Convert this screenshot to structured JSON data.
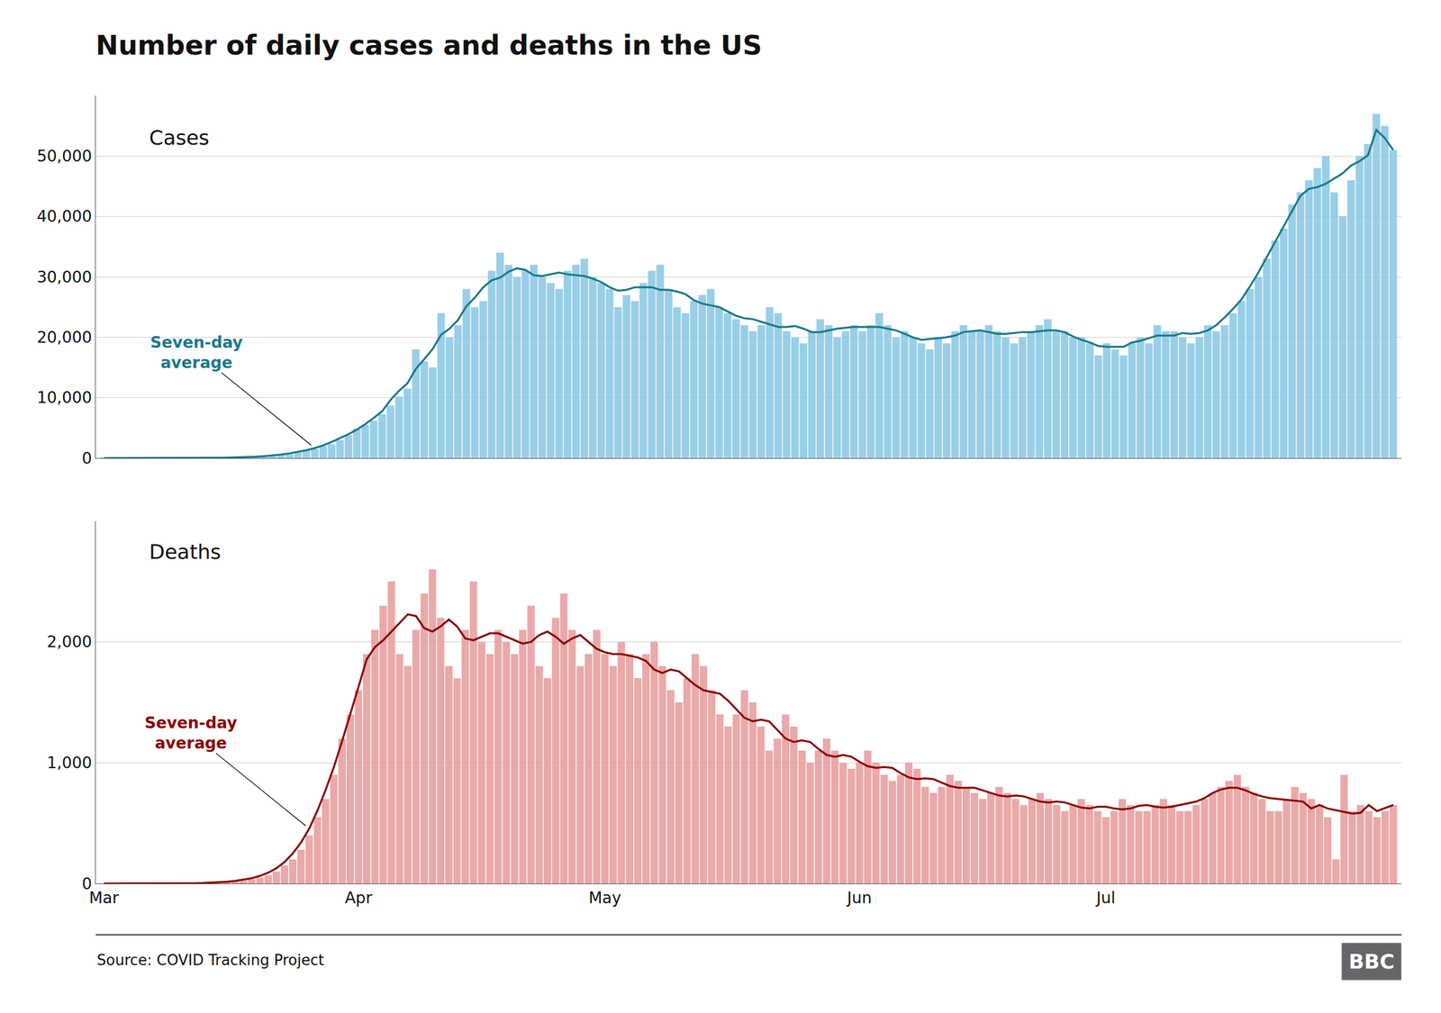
{
  "title": "Number of daily cases and deaths in the US",
  "source": "Source: COVID Tracking Project",
  "logo": "BBC",
  "chart_data": [
    {
      "type": "bar",
      "title": "Cases",
      "annotations": [
        {
          "text": "Seven-day\naverage"
        }
      ],
      "categories": [
        "Mar",
        null,
        null,
        null,
        null,
        null,
        null,
        null,
        null,
        null,
        null,
        null,
        null,
        null,
        null,
        null,
        null,
        null,
        null,
        null,
        null,
        null,
        null,
        null,
        null,
        null,
        null,
        null,
        null,
        null,
        null,
        "Apr",
        null,
        null,
        null,
        null,
        null,
        null,
        null,
        null,
        null,
        null,
        null,
        null,
        null,
        null,
        null,
        null,
        null,
        null,
        null,
        null,
        null,
        null,
        null,
        null,
        null,
        null,
        null,
        null,
        null,
        "May",
        null,
        null,
        null,
        null,
        null,
        null,
        null,
        null,
        null,
        null,
        null,
        null,
        null,
        null,
        null,
        null,
        null,
        null,
        null,
        null,
        null,
        null,
        null,
        null,
        null,
        null,
        null,
        null,
        null,
        null,
        "Jun",
        null,
        null,
        null,
        null,
        null,
        null,
        null,
        null,
        null,
        null,
        null,
        null,
        null,
        null,
        null,
        null,
        null,
        null,
        null,
        null,
        null,
        null,
        null,
        null,
        null,
        null,
        null,
        null,
        null,
        "Jul",
        null,
        null,
        null,
        null,
        null,
        null,
        null,
        null,
        null,
        null,
        null,
        null,
        null,
        null,
        null,
        null,
        null,
        null,
        null,
        null,
        null,
        null,
        null,
        null,
        null,
        null,
        null,
        null,
        null,
        null,
        null
      ],
      "series": [
        {
          "type": "bar",
          "color": "#8ecae6",
          "values": [
            1,
            0,
            2,
            0,
            3,
            5,
            8,
            10,
            15,
            12,
            18,
            22,
            30,
            42,
            55,
            70,
            100,
            140,
            200,
            280,
            380,
            500,
            700,
            900,
            1200,
            1500,
            2000,
            2300,
            3000,
            3800,
            4900,
            5500,
            6200,
            7300,
            8700,
            10200,
            11500,
            18000,
            16000,
            15000,
            24000,
            20000,
            22000,
            28000,
            25000,
            26000,
            31000,
            34000,
            32000,
            30000,
            31000,
            32000,
            30000,
            29000,
            28000,
            31000,
            32000,
            33000,
            30000,
            29000,
            28000,
            25000,
            27000,
            26000,
            29000,
            31000,
            32000,
            28000,
            25000,
            24000,
            26000,
            27000,
            28000,
            25000,
            24000,
            23000,
            22000,
            21000,
            22000,
            25000,
            24000,
            21000,
            20000,
            19000,
            21000,
            23000,
            22000,
            20000,
            21000,
            22000,
            21000,
            22000,
            24000,
            22000,
            20000,
            21000,
            20000,
            19000,
            18000,
            20000,
            19000,
            21000,
            22000,
            21000,
            21000,
            22000,
            21000,
            20000,
            19000,
            20000,
            21000,
            22000,
            23000,
            21000,
            21000,
            20000,
            20000,
            19000,
            17000,
            19000,
            18000,
            17000,
            19000,
            20000,
            19000,
            22000,
            21000,
            21000,
            20000,
            19000,
            20000,
            22000,
            21000,
            22000,
            24000,
            26000,
            28000,
            30000,
            33000,
            36000,
            38000,
            42000,
            44000,
            46000,
            48000,
            50000,
            44000,
            40000,
            46000,
            50000,
            52000,
            57000,
            55000,
            51000
          ]
        },
        {
          "type": "line",
          "color": "#1a7a8a",
          "values": [
            1,
            0.5,
            1,
            2.71,
            4,
            6.14,
            7.57,
            10.14,
            12.86,
            16.43,
            21.29,
            27.71,
            35.57,
            48.14,
            65.57,
            91,
            126.71,
            175,
            238.57,
            328.57,
            442.86,
            594.29,
            780,
            1025.71,
            1300,
            1657.14,
            2100,
            2671.43,
            3285.71,
            3957.14,
            4714.29,
            5628.57,
            6657.14,
            7757.14,
            9628.57,
            11128.57,
            12385.71,
            14771.43,
            16385.71,
            18071.43,
            20428.57,
            21428.57,
            22857.14,
            25142.86,
            26571.43,
            28285.71,
            29428.57,
            29857.14,
            30857.14,
            31428.57,
            31142.86,
            30285.71,
            30142.86,
            30428.57,
            30714.29,
            30428.57,
            30285.71,
            30142.86,
            29714.29,
            29142.86,
            28285.71,
            27714.29,
            27857.14,
            28285.71,
            28285.71,
            28285.71,
            27857.14,
            27857.14,
            27571.43,
            27142.86,
            26142.86,
            25571.43,
            25285.71,
            25000,
            24285.71,
            23571.43,
            23142.86,
            23000,
            22571.43,
            22142.86,
            21714.29,
            21714.29,
            21857.14,
            21428.57,
            20857.14,
            20857.14,
            21142.86,
            21428.57,
            21571.43,
            21714.29,
            21714.29,
            21714.29,
            21714.29,
            21428.57,
            21142.86,
            20571.43,
            20000,
            19571.43,
            19714.29,
            19857.14,
            20000,
            20285.71,
            20857.14,
            21000,
            21142.86,
            20857.14,
            20571.43,
            20571.43,
            20714.29,
            20857.14,
            20857.14,
            21000,
            21142.86,
            21142.86,
            20857.14,
            20142.86,
            19571.43,
            19142.86,
            18571.43,
            18428.57,
            18428.57,
            18428.57,
            19142.86,
            19428.57,
            19857.14,
            20285.71,
            20285.71,
            20285.71,
            20714.29,
            20571.43,
            20714.29,
            21142.86,
            22000,
            23285.71,
            24714.29,
            26285.71,
            28428.57,
            30714.29,
            33285.71,
            35857.14,
            38428.57,
            41000,
            43428.57,
            44571.43,
            44857.14,
            45428.57,
            46285.71,
            47142.86,
            48428.57,
            49142.86,
            50142.86,
            54333.33,
            53000,
            51000
          ]
        }
      ],
      "ylim": [
        0,
        60000
      ],
      "yticks": [
        0,
        {
          "value": 10000,
          "label": "10,000"
        },
        {
          "value": 20000,
          "label": "20,000"
        },
        {
          "value": 30000,
          "label": "30,000"
        },
        {
          "value": 40000,
          "label": "40,000"
        },
        {
          "value": 50000,
          "label": "50,000"
        }
      ],
      "grid": true,
      "tick_labels": "y"
    },
    {
      "type": "bar",
      "title": "Deaths",
      "annotations": [
        {
          "text": "Seven-day\naverage"
        }
      ],
      "categories": [
        "Mar",
        null,
        null,
        null,
        null,
        null,
        null,
        null,
        null,
        null,
        null,
        null,
        null,
        null,
        null,
        null,
        null,
        null,
        null,
        null,
        null,
        null,
        null,
        null,
        null,
        null,
        null,
        null,
        null,
        null,
        null,
        "Apr",
        null,
        null,
        null,
        null,
        null,
        null,
        null,
        null,
        null,
        null,
        null,
        null,
        null,
        null,
        null,
        null,
        null,
        null,
        null,
        null,
        null,
        null,
        null,
        null,
        null,
        null,
        null,
        null,
        null,
        "May",
        null,
        null,
        null,
        null,
        null,
        null,
        null,
        null,
        null,
        null,
        null,
        null,
        null,
        null,
        null,
        null,
        null,
        null,
        null,
        null,
        null,
        null,
        null,
        null,
        null,
        null,
        null,
        null,
        null,
        null,
        "Jun",
        null,
        null,
        null,
        null,
        null,
        null,
        null,
        null,
        null,
        null,
        null,
        null,
        null,
        null,
        null,
        null,
        null,
        null,
        null,
        null,
        null,
        null,
        null,
        null,
        null,
        null,
        null,
        null,
        null,
        "Jul",
        null,
        null,
        null,
        null,
        null,
        null,
        null,
        null,
        null,
        null,
        null,
        null,
        null,
        null,
        null,
        null,
        null,
        null,
        null,
        null,
        null,
        null,
        null,
        null,
        null,
        null,
        null,
        null,
        null,
        null,
        null,
        null,
        null,
        null,
        null
      ],
      "series": [
        {
          "type": "bar",
          "color": "#e8a0a0",
          "values": [
            0,
            0,
            0,
            0,
            0,
            0,
            0,
            0,
            0,
            0,
            1,
            2,
            3,
            5,
            8,
            12,
            18,
            25,
            35,
            50,
            70,
            100,
            150,
            200,
            280,
            400,
            550,
            700,
            900,
            1200,
            1400,
            1600,
            1900,
            2100,
            2300,
            2500,
            1900,
            1800,
            2100,
            2400,
            2600,
            2200,
            1800,
            1700,
            2100,
            2500,
            2000,
            1900,
            2100,
            2000,
            1900,
            2100,
            2300,
            1800,
            1700,
            2200,
            2400,
            2100,
            1800,
            1900,
            2100,
            1900,
            1800,
            2000,
            1900,
            1700,
            1900,
            2000,
            1800,
            1600,
            1500,
            1700,
            1900,
            1800,
            1600,
            1400,
            1300,
            1400,
            1600,
            1500,
            1300,
            1100,
            1200,
            1400,
            1300,
            1100,
            1000,
            1100,
            1200,
            1100,
            1000,
            950,
            1000,
            1100,
            1000,
            900,
            850,
            900,
            1000,
            950,
            800,
            750,
            800,
            900,
            850,
            800,
            750,
            700,
            750,
            800,
            750,
            700,
            650,
            700,
            750,
            700,
            650,
            600,
            650,
            700,
            650,
            600,
            550,
            600,
            700,
            650,
            600,
            600,
            650,
            700,
            650,
            600,
            600,
            650,
            700,
            750,
            800,
            850,
            900,
            800,
            750,
            700,
            600,
            600,
            700,
            800,
            750,
            700,
            650,
            550,
            200,
            900,
            600,
            650,
            600,
            550,
            600,
            650
          ]
        },
        {
          "type": "line",
          "color": "#8b0000",
          "values": [
            0,
            0,
            0,
            0,
            0,
            0,
            0,
            0.14,
            0.43,
            0.86,
            1.57,
            2.71,
            4.43,
            7,
            10.43,
            15.14,
            21.86,
            31.14,
            44.29,
            64,
            90,
            126.43,
            178.57,
            250,
            340,
            454.29,
            604.29,
            775.71,
            964.29,
            1178.57,
            1400,
            1628.57,
            1857.14,
            1957.14,
            2014.29,
            2085.71,
            2157.14,
            2228.57,
            2214.29,
            2114.29,
            2085.71,
            2128.57,
            2185.71,
            2128.57,
            2028.57,
            2014.29,
            2042.86,
            2071.43,
            2071.43,
            2042.86,
            2014.29,
            1985.71,
            2000,
            2057.14,
            2085.71,
            2042.86,
            1985.71,
            2028.57,
            2057.14,
            2000,
            1942.86,
            1914.29,
            1900,
            1900,
            1885.71,
            1871.43,
            1842.86,
            1771.43,
            1742.86,
            1771.43,
            1757.14,
            1700,
            1642.86,
            1600,
            1585.71,
            1571.43,
            1514.29,
            1442.86,
            1371.43,
            1342.86,
            1357.14,
            1342.86,
            1271.43,
            1200,
            1171.43,
            1185.71,
            1171.43,
            1114.29,
            1064.29,
            1050,
            1064.29,
            1050,
            1007.14,
            971.43,
            957.14,
            964.29,
            957.14,
            914.29,
            878.57,
            864.29,
            871.43,
            864.29,
            835.71,
            807.14,
            792.86,
            792.86,
            792.86,
            771.43,
            750,
            728.57,
            721.43,
            728.57,
            721.43,
            700,
            678.57,
            671.43,
            678.57,
            671.43,
            650,
            628.57,
            621.43,
            635.71,
            635.71,
            621.43,
            614.29,
            621.43,
            642.86,
            650,
            635.71,
            628.57,
            635.71,
            650,
            664.29,
            678.57,
            707.14,
            750,
            778.57,
            792.86,
            792.86,
            771.43,
            742.86,
            721.43,
            707.14,
            700,
            692.86,
            685.71,
            678.57,
            621.43,
            650,
            621.43,
            607.14,
            592.86,
            578.57,
            585.71,
            650,
            600,
            625,
            650
          ]
        }
      ],
      "ylim": [
        0,
        3000
      ],
      "yticks": [
        0,
        {
          "value": 1000,
          "label": "1,000"
        },
        {
          "value": 2000,
          "label": "2,000"
        }
      ],
      "grid": true
    }
  ]
}
